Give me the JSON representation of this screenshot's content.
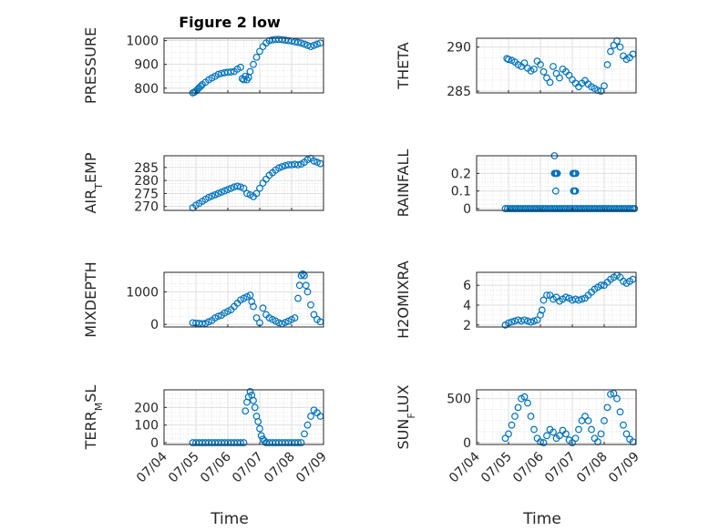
{
  "figure": {
    "title": "Figure 2 low",
    "color": "#0072BD",
    "xlabel": "Time",
    "date_ticks": [
      "07/04",
      "07/05",
      "07/06",
      "07/07",
      "07/08",
      "07/09"
    ]
  },
  "chart_data": [
    {
      "type": "scatter",
      "ylabel": "PRESSURE",
      "title": "Figure 2 low",
      "xlim": [
        "07/04",
        "07/09"
      ],
      "ylim": [
        780,
        1010
      ],
      "yticks": [
        800,
        900,
        1000
      ],
      "grid": true,
      "series": [
        {
          "x": [
            0.9,
            0.95,
            1.0,
            1.05,
            1.1,
            1.15,
            1.2,
            1.3,
            1.4,
            1.5,
            1.6,
            1.7,
            1.8,
            1.9,
            2.0,
            2.1,
            2.2,
            2.3,
            2.4,
            2.45,
            2.5,
            2.55,
            2.6,
            2.65,
            2.7,
            2.8,
            2.9,
            3.0,
            3.1,
            3.2,
            3.3,
            3.4,
            3.5,
            3.6,
            3.7,
            3.8,
            3.9,
            4.0,
            4.1,
            4.2,
            4.3,
            4.4,
            4.5,
            4.6,
            4.7,
            4.8,
            4.9
          ],
          "y": [
            780,
            783,
            788,
            795,
            802,
            808,
            815,
            825,
            835,
            843,
            850,
            858,
            862,
            865,
            867,
            868,
            870,
            880,
            888,
            840,
            835,
            850,
            835,
            845,
            870,
            900,
            930,
            955,
            975,
            990,
            1000,
            1003,
            1005,
            1005,
            1004,
            1002,
            1000,
            998,
            995,
            993,
            990,
            985,
            980,
            975,
            980,
            985,
            990
          ]
        }
      ]
    },
    {
      "type": "scatter",
      "ylabel": "THETA",
      "xlim": [
        "07/04",
        "07/09"
      ],
      "ylim": [
        284.8,
        291
      ],
      "yticks": [
        285,
        290
      ],
      "grid": true,
      "series": [
        {
          "x": [
            0.95,
            1.0,
            1.1,
            1.2,
            1.3,
            1.4,
            1.5,
            1.6,
            1.7,
            1.8,
            1.9,
            2.0,
            2.1,
            2.2,
            2.3,
            2.4,
            2.5,
            2.6,
            2.7,
            2.8,
            2.9,
            3.0,
            3.1,
            3.2,
            3.3,
            3.4,
            3.5,
            3.6,
            3.7,
            3.8,
            3.9,
            4.0,
            4.1,
            4.2,
            4.3,
            4.4,
            4.5,
            4.6,
            4.7,
            4.8,
            4.9
          ],
          "y": [
            288.7,
            288.6,
            288.5,
            288.3,
            288.0,
            287.8,
            288.2,
            287.6,
            287.3,
            287.5,
            288.4,
            288.0,
            287.2,
            286.5,
            286.0,
            287.8,
            287.0,
            286.5,
            287.5,
            287.2,
            286.8,
            286.3,
            285.9,
            285.5,
            285.9,
            286.2,
            285.8,
            285.5,
            285.3,
            285.1,
            285.0,
            285.6,
            288.0,
            289.5,
            290.2,
            290.7,
            290.0,
            289.0,
            288.6,
            288.8,
            289.2
          ]
        }
      ]
    },
    {
      "type": "scatter",
      "ylabel": "AIR_TEMP",
      "xlim": [
        "07/04",
        "07/09"
      ],
      "ylim": [
        268.5,
        289.5
      ],
      "yticks": [
        270,
        275,
        280,
        285
      ],
      "grid": true,
      "series": [
        {
          "x": [
            0.9,
            1.0,
            1.1,
            1.2,
            1.3,
            1.4,
            1.5,
            1.6,
            1.7,
            1.8,
            1.9,
            2.0,
            2.1,
            2.2,
            2.3,
            2.4,
            2.5,
            2.6,
            2.7,
            2.8,
            2.9,
            3.0,
            3.1,
            3.2,
            3.3,
            3.4,
            3.5,
            3.6,
            3.7,
            3.8,
            3.9,
            4.0,
            4.1,
            4.2,
            4.3,
            4.4,
            4.5,
            4.6,
            4.7,
            4.8,
            4.9
          ],
          "y": [
            269.5,
            270.5,
            271.2,
            272.0,
            272.8,
            273.5,
            274.0,
            274.5,
            275.0,
            275.5,
            276.0,
            276.5,
            277.0,
            277.5,
            277.8,
            277.5,
            277.0,
            275.0,
            274.5,
            273.8,
            275.0,
            277.0,
            279.0,
            280.5,
            282.0,
            283.0,
            284.0,
            284.8,
            285.3,
            285.7,
            286.0,
            286.0,
            286.2,
            286.0,
            286.3,
            287.0,
            288.0,
            288.5,
            287.5,
            287.0,
            286.5
          ]
        }
      ]
    },
    {
      "type": "scatter",
      "ylabel": "RAINFALL",
      "xlim": [
        "07/04",
        "07/09"
      ],
      "ylim": [
        -0.01,
        0.3
      ],
      "yticks": [
        0,
        0.1,
        0.2
      ],
      "grid": true,
      "series": [
        {
          "x": [
            0.9,
            0.97,
            1.04,
            1.11,
            1.18,
            1.25,
            1.32,
            1.39,
            1.46,
            1.53,
            1.6,
            1.67,
            1.74,
            1.81,
            1.88,
            1.95,
            2.02,
            2.09,
            2.16,
            2.23,
            2.3,
            2.37,
            2.44,
            2.51,
            2.58,
            2.65,
            2.72,
            2.79,
            2.86,
            2.93,
            3.0,
            3.07,
            3.14,
            3.21,
            3.28,
            3.35,
            3.42,
            3.49,
            3.56,
            3.63,
            3.7,
            3.77,
            3.84,
            3.91,
            3.98,
            4.05,
            4.12,
            4.19,
            4.26,
            4.33,
            4.4,
            4.47,
            4.54,
            4.61,
            4.68,
            4.75,
            4.82,
            4.89,
            4.95,
            2.44,
            2.47,
            2.48,
            2.5,
            2.44,
            2.53,
            3.02,
            3.05,
            3.08,
            3.11,
            3.04,
            3.07,
            3.1
          ],
          "y": [
            0,
            0,
            0,
            0,
            0,
            0,
            0,
            0,
            0,
            0,
            0,
            0,
            0,
            0,
            0,
            0,
            0,
            0,
            0,
            0,
            0,
            0,
            0,
            0,
            0,
            0,
            0,
            0,
            0,
            0,
            0,
            0,
            0,
            0,
            0,
            0,
            0,
            0,
            0,
            0,
            0,
            0,
            0,
            0,
            0,
            0,
            0,
            0,
            0,
            0,
            0,
            0,
            0,
            0,
            0,
            0,
            0,
            0,
            0,
            0.3,
            0.2,
            0.1,
            0.2,
            0.2,
            0.2,
            0.2,
            0.2,
            0.2,
            0.2,
            0.1,
            0.1,
            0.1
          ]
        }
      ]
    },
    {
      "type": "scatter",
      "ylabel": "MIXDEPTH",
      "xlim": [
        "07/04",
        "07/09"
      ],
      "ylim": [
        -80,
        1600
      ],
      "yticks": [
        0,
        1000
      ],
      "grid": true,
      "series": [
        {
          "x": [
            0.9,
            1.0,
            1.1,
            1.2,
            1.3,
            1.4,
            1.5,
            1.6,
            1.7,
            1.8,
            1.9,
            2.0,
            2.1,
            2.2,
            2.3,
            2.4,
            2.5,
            2.6,
            2.7,
            2.75,
            2.8,
            2.9,
            3.0,
            3.1,
            3.2,
            3.3,
            3.4,
            3.5,
            3.6,
            3.7,
            3.8,
            3.9,
            4.0,
            4.1,
            4.2,
            4.25,
            4.3,
            4.35,
            4.4,
            4.45,
            4.5,
            4.6,
            4.7,
            4.8,
            4.9
          ],
          "y": [
            50,
            40,
            30,
            20,
            30,
            80,
            120,
            200,
            250,
            280,
            350,
            400,
            450,
            550,
            650,
            750,
            800,
            850,
            900,
            700,
            550,
            200,
            50,
            500,
            300,
            200,
            150,
            100,
            50,
            20,
            60,
            100,
            150,
            200,
            800,
            1200,
            1500,
            1550,
            1500,
            1200,
            1000,
            600,
            300,
            150,
            80
          ]
        }
      ]
    },
    {
      "type": "scatter",
      "ylabel": "H2OMIXRA",
      "xlim": [
        "07/04",
        "07/09"
      ],
      "ylim": [
        1.8,
        7.3
      ],
      "yticks": [
        2,
        4,
        6
      ],
      "grid": true,
      "series": [
        {
          "x": [
            0.9,
            1.0,
            1.1,
            1.2,
            1.3,
            1.4,
            1.5,
            1.6,
            1.7,
            1.8,
            1.9,
            2.0,
            2.05,
            2.1,
            2.2,
            2.3,
            2.4,
            2.5,
            2.6,
            2.7,
            2.8,
            2.9,
            3.0,
            3.1,
            3.2,
            3.3,
            3.4,
            3.5,
            3.6,
            3.7,
            3.8,
            3.9,
            4.0,
            4.1,
            4.2,
            4.3,
            4.4,
            4.5,
            4.6,
            4.7,
            4.8,
            4.9
          ],
          "y": [
            2.0,
            2.2,
            2.3,
            2.4,
            2.5,
            2.4,
            2.5,
            2.4,
            2.3,
            2.4,
            2.5,
            3.0,
            3.5,
            4.5,
            5.0,
            5.0,
            4.6,
            4.8,
            4.4,
            4.6,
            4.8,
            4.7,
            4.5,
            4.6,
            4.5,
            4.6,
            4.7,
            5.0,
            5.3,
            5.6,
            5.8,
            6.0,
            6.0,
            6.3,
            6.6,
            6.8,
            7.0,
            6.8,
            6.4,
            6.2,
            6.4,
            6.6
          ]
        }
      ]
    },
    {
      "type": "scatter",
      "ylabel": "TERR_MSL",
      "xlim": [
        "07/04",
        "07/09"
      ],
      "ylim": [
        -10,
        300
      ],
      "yticks": [
        0,
        100,
        200
      ],
      "grid": true,
      "series": [
        {
          "x": [
            0.9,
            1.0,
            1.1,
            1.2,
            1.3,
            1.4,
            1.5,
            1.6,
            1.7,
            1.8,
            1.9,
            2.0,
            2.1,
            2.2,
            2.3,
            2.4,
            2.5,
            2.55,
            2.6,
            2.65,
            2.7,
            2.75,
            2.8,
            2.85,
            2.9,
            2.95,
            3.0,
            3.05,
            3.1,
            3.15,
            3.2,
            3.3,
            3.4,
            3.5,
            3.6,
            3.7,
            3.8,
            3.9,
            4.0,
            4.1,
            4.2,
            4.3,
            4.4,
            4.5,
            4.6,
            4.7,
            4.8,
            4.9
          ],
          "y": [
            0,
            0,
            0,
            0,
            0,
            0,
            0,
            0,
            0,
            0,
            0,
            0,
            0,
            0,
            0,
            0,
            0,
            180,
            230,
            260,
            290,
            270,
            240,
            200,
            150,
            120,
            80,
            40,
            20,
            10,
            0,
            0,
            0,
            0,
            0,
            0,
            0,
            0,
            0,
            0,
            0,
            0,
            50,
            100,
            150,
            185,
            170,
            150
          ]
        }
      ]
    },
    {
      "type": "scatter",
      "ylabel": "SUN_FLUX",
      "xlim": [
        "07/04",
        "07/09"
      ],
      "ylim": [
        -20,
        600
      ],
      "yticks": [
        0,
        500
      ],
      "grid": true,
      "series": [
        {
          "x": [
            0.9,
            1.0,
            1.1,
            1.2,
            1.3,
            1.4,
            1.5,
            1.6,
            1.7,
            1.8,
            1.9,
            2.0,
            2.1,
            2.2,
            2.3,
            2.4,
            2.5,
            2.6,
            2.7,
            2.8,
            2.9,
            3.0,
            3.1,
            3.2,
            3.3,
            3.4,
            3.5,
            3.6,
            3.7,
            3.8,
            3.9,
            4.0,
            4.1,
            4.2,
            4.3,
            4.4,
            4.5,
            4.6,
            4.7,
            4.8,
            4.9
          ],
          "y": [
            50,
            100,
            200,
            300,
            400,
            500,
            520,
            450,
            300,
            150,
            50,
            10,
            0,
            80,
            150,
            120,
            50,
            80,
            140,
            100,
            30,
            0,
            50,
            150,
            250,
            300,
            250,
            150,
            50,
            10,
            100,
            250,
            400,
            550,
            560,
            500,
            350,
            200,
            100,
            40,
            10
          ]
        }
      ]
    }
  ]
}
